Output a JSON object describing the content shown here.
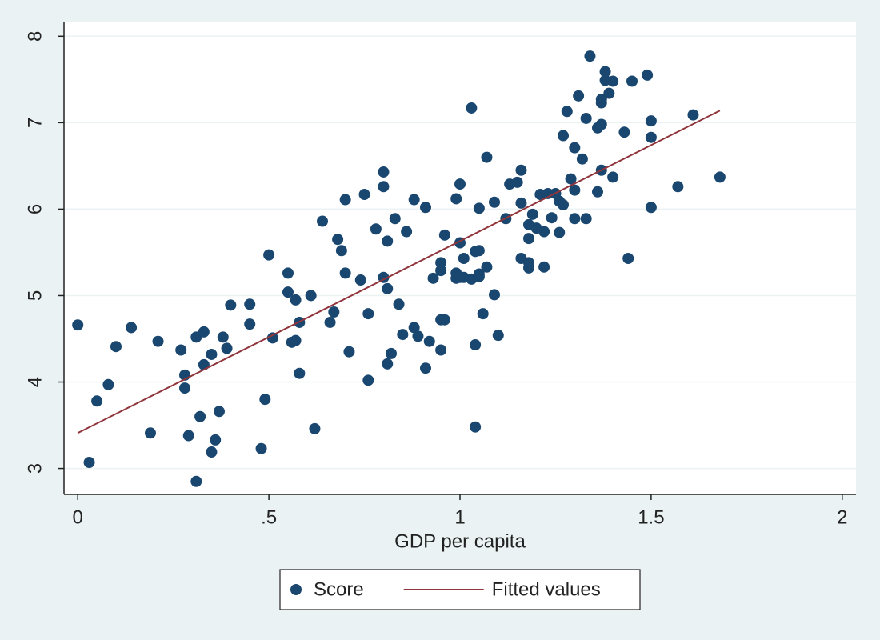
{
  "chart_data": {
    "type": "scatter",
    "x_label": "GDP per capita",
    "xlim": [
      -0.036,
      2.036
    ],
    "ylim": [
      2.7,
      8.16
    ],
    "xticks": [
      0,
      {
        "value": 0.5,
        "label": ".5"
      },
      1,
      1.5,
      2
    ],
    "yticks": [
      3,
      4,
      5,
      6,
      7,
      8
    ],
    "grid": true,
    "legend": "bottom",
    "series": [
      {
        "name": "Score",
        "type": "scatter",
        "color": "#1a476f",
        "x": [
          0.0,
          0.03,
          0.05,
          0.08,
          0.1,
          0.14,
          0.19,
          0.21,
          0.27,
          0.28,
          0.28,
          0.29,
          0.31,
          0.31,
          0.32,
          0.33,
          0.33,
          0.35,
          0.35,
          0.36,
          0.37,
          0.38,
          0.39,
          0.4,
          0.45,
          0.45,
          0.48,
          0.49,
          0.5,
          0.51,
          0.55,
          0.55,
          0.56,
          0.57,
          0.57,
          0.58,
          0.58,
          0.61,
          0.62,
          0.64,
          0.66,
          0.67,
          0.68,
          0.69,
          0.7,
          0.7,
          0.71,
          0.74,
          0.75,
          0.76,
          0.76,
          0.78,
          0.8,
          0.8,
          0.8,
          0.81,
          0.81,
          0.81,
          0.82,
          0.83,
          0.84,
          0.85,
          0.86,
          0.88,
          0.88,
          0.89,
          0.91,
          0.91,
          0.92,
          0.93,
          0.95,
          0.95,
          0.95,
          0.95,
          0.96,
          0.96,
          0.99,
          0.99,
          0.99,
          1.0,
          1.0,
          1.0,
          1.01,
          1.01,
          1.03,
          1.03,
          1.04,
          1.04,
          1.05,
          1.04,
          1.05,
          1.05,
          1.05,
          1.06,
          1.07,
          1.07,
          1.09,
          1.09,
          1.1,
          1.12,
          1.13,
          1.15,
          1.16,
          1.16,
          1.16,
          1.18,
          1.18,
          1.18,
          1.18,
          1.19,
          1.2,
          1.21,
          1.22,
          1.22,
          1.23,
          1.24,
          1.25,
          1.26,
          1.26,
          1.27,
          1.27,
          1.28,
          1.29,
          1.3,
          1.3,
          1.3,
          1.31,
          1.32,
          1.33,
          1.33,
          1.34,
          1.36,
          1.36,
          1.37,
          1.37,
          1.37,
          1.37,
          1.38,
          1.38,
          1.39,
          1.4,
          1.4,
          1.43,
          1.44,
          1.45,
          1.49,
          1.5,
          1.5,
          1.5,
          1.57,
          1.61,
          1.68
        ],
        "values": [
          4.66,
          3.07,
          3.78,
          3.97,
          4.41,
          4.63,
          3.41,
          4.47,
          4.37,
          4.08,
          3.93,
          3.38,
          2.85,
          4.52,
          3.6,
          4.58,
          4.2,
          4.32,
          3.19,
          3.33,
          3.66,
          4.52,
          4.39,
          4.89,
          4.9,
          4.67,
          3.23,
          3.8,
          5.47,
          4.51,
          5.26,
          5.04,
          4.46,
          4.95,
          4.48,
          4.69,
          4.1,
          5.0,
          3.46,
          5.86,
          4.69,
          4.81,
          5.65,
          5.52,
          5.26,
          6.11,
          4.35,
          5.18,
          6.17,
          4.02,
          4.79,
          5.77,
          6.26,
          6.43,
          5.21,
          5.63,
          5.08,
          4.21,
          4.33,
          5.89,
          4.9,
          4.55,
          5.74,
          4.63,
          6.11,
          4.53,
          6.02,
          4.16,
          4.47,
          5.2,
          5.38,
          5.29,
          4.72,
          4.37,
          4.72,
          5.7,
          6.12,
          5.26,
          5.2,
          5.21,
          6.29,
          5.61,
          5.21,
          5.43,
          5.19,
          7.17,
          3.48,
          5.51,
          5.22,
          4.43,
          6.01,
          5.52,
          5.25,
          4.79,
          5.33,
          6.6,
          5.01,
          6.08,
          4.54,
          5.89,
          6.29,
          6.31,
          5.43,
          6.45,
          6.07,
          5.32,
          5.82,
          5.38,
          5.66,
          5.94,
          5.78,
          6.17,
          5.74,
          5.33,
          6.18,
          5.9,
          6.18,
          5.73,
          6.09,
          6.05,
          6.85,
          7.13,
          6.35,
          6.22,
          6.71,
          5.89,
          7.31,
          6.58,
          5.89,
          7.05,
          7.77,
          6.94,
          6.2,
          7.27,
          6.45,
          7.23,
          6.98,
          7.49,
          7.59,
          7.34,
          7.48,
          6.37,
          6.89,
          5.43,
          7.48,
          7.55,
          7.02,
          6.83,
          6.02,
          6.26,
          7.09,
          6.37
        ]
      },
      {
        "name": "Fitted values",
        "type": "line",
        "color": "#90353b",
        "x": [
          0,
          1.68
        ],
        "values": [
          3.41,
          7.14
        ]
      }
    ]
  }
}
